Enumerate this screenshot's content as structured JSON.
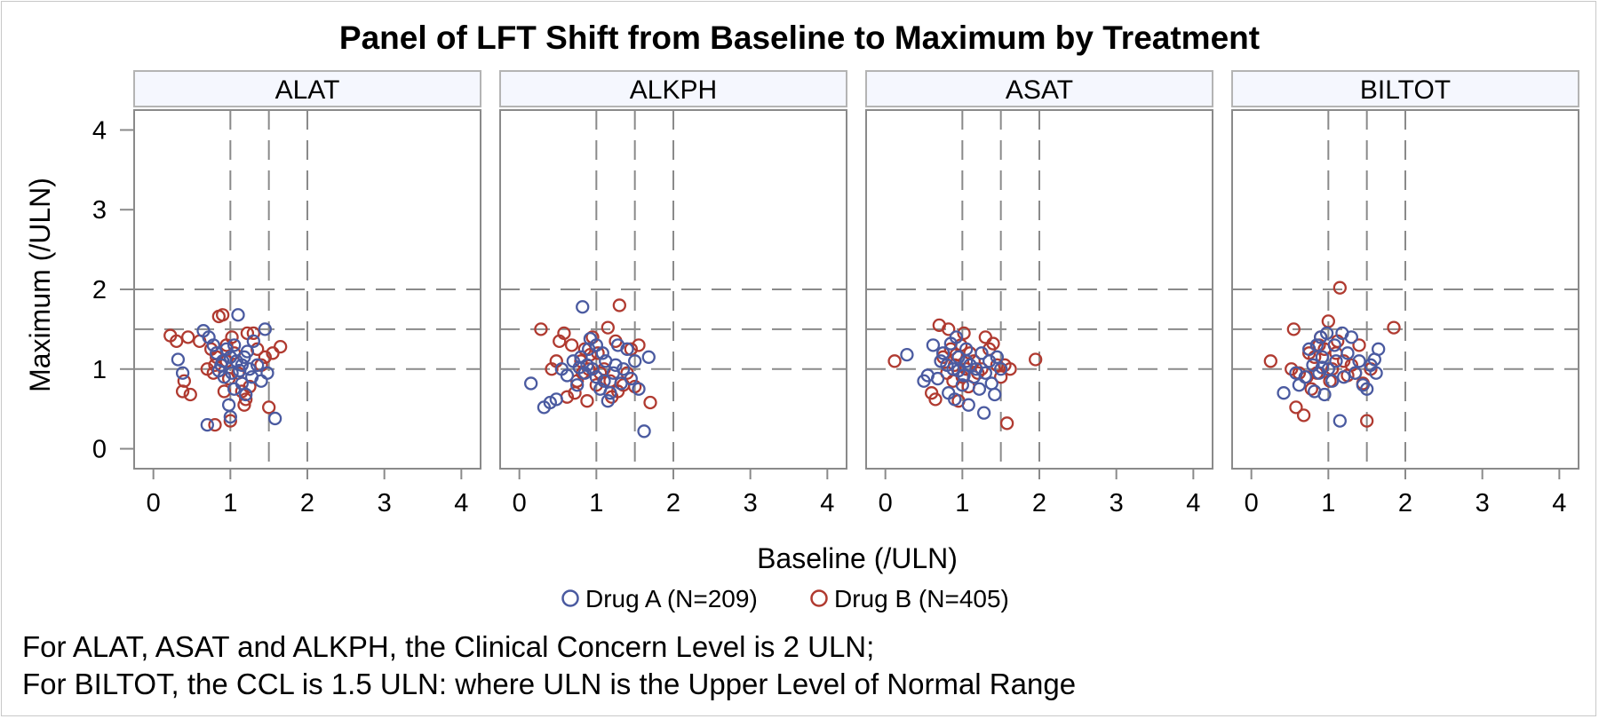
{
  "chart_data": {
    "type": "scatter",
    "title": "Panel of LFT Shift from Baseline to Maximum by Treatment",
    "xlabel": "Baseline (/ULN)",
    "ylabel": "Maximum (/ULN)",
    "xlim": [
      -0.25,
      4.25
    ],
    "ylim": [
      -0.25,
      4.25
    ],
    "xticks": [
      "0",
      "1",
      "2",
      "3",
      "4"
    ],
    "yticks": [
      "0",
      "1",
      "2",
      "3",
      "4"
    ],
    "grid": false,
    "legend_position": "bottom",
    "series_colors": {
      "Drug A": "#4a5aa0",
      "Drug B": "#b03a30"
    },
    "legend": [
      {
        "label": "Drug A (N=209)",
        "color": "#4a5aa0"
      },
      {
        "label": "Drug B (N=405)",
        "color": "#b03a30"
      }
    ],
    "footnotes": [
      "For ALAT, ASAT and ALKPH, the Clinical Concern Level is 2 ULN;",
      "For BILTOT, the CCL is 1.5 ULN: where ULN is the Upper Level of Normal Range"
    ],
    "panels": [
      {
        "name": "ALAT",
        "ref_x": [
          1,
          1.5,
          2
        ],
        "ref_y": [
          1,
          1.5,
          2
        ],
        "drug_a": [
          [
            0.32,
            1.12
          ],
          [
            0.38,
            0.95
          ],
          [
            0.65,
            1.48
          ],
          [
            0.7,
            0.3
          ],
          [
            0.72,
            1.4
          ],
          [
            0.78,
            1.3
          ],
          [
            0.82,
            1.2
          ],
          [
            0.88,
            1.05
          ],
          [
            0.92,
            0.9
          ],
          [
            0.95,
            1.25
          ],
          [
            0.98,
            0.55
          ],
          [
            1.0,
            0.4
          ],
          [
            1.02,
            0.95
          ],
          [
            1.05,
            0.75
          ],
          [
            1.08,
            1.1
          ],
          [
            1.1,
            1.68
          ],
          [
            1.12,
            0.98
          ],
          [
            1.15,
            0.82
          ],
          [
            1.18,
            1.15
          ],
          [
            1.2,
            0.68
          ],
          [
            1.22,
            1.22
          ],
          [
            1.25,
            1.0
          ],
          [
            1.28,
            0.9
          ],
          [
            1.3,
            1.35
          ],
          [
            1.35,
            1.05
          ],
          [
            1.4,
            0.85
          ],
          [
            1.45,
            1.5
          ],
          [
            1.48,
            0.95
          ],
          [
            1.58,
            0.38
          ],
          [
            1.05,
            1.3
          ],
          [
            0.9,
            1.1
          ],
          [
            1.15,
            1.05
          ],
          [
            1.0,
            1.15
          ],
          [
            0.85,
            0.98
          ]
        ],
        "drug_b": [
          [
            0.22,
            1.42
          ],
          [
            0.3,
            1.35
          ],
          [
            0.38,
            0.72
          ],
          [
            0.4,
            0.85
          ],
          [
            0.45,
            1.4
          ],
          [
            0.48,
            0.68
          ],
          [
            0.6,
            1.35
          ],
          [
            0.7,
            1.0
          ],
          [
            0.75,
            1.25
          ],
          [
            0.78,
            0.95
          ],
          [
            0.8,
            0.3
          ],
          [
            0.82,
            1.15
          ],
          [
            0.85,
            1.66
          ],
          [
            0.88,
            1.05
          ],
          [
            0.9,
            1.68
          ],
          [
            0.92,
            0.72
          ],
          [
            0.95,
            1.1
          ],
          [
            0.98,
            0.88
          ],
          [
            1.0,
            0.35
          ],
          [
            1.02,
            1.4
          ],
          [
            1.05,
            1.2
          ],
          [
            1.1,
            0.95
          ],
          [
            1.15,
            0.72
          ],
          [
            1.18,
            0.55
          ],
          [
            1.2,
            0.62
          ],
          [
            1.22,
            1.45
          ],
          [
            1.25,
            0.78
          ],
          [
            1.3,
            1.45
          ],
          [
            1.35,
            1.25
          ],
          [
            1.4,
            1.05
          ],
          [
            1.45,
            1.15
          ],
          [
            1.5,
            0.52
          ],
          [
            1.55,
            1.2
          ],
          [
            1.65,
            1.28
          ],
          [
            0.95,
            1.3
          ],
          [
            0.8,
            1.05
          ]
        ]
      },
      {
        "name": "ALKPH",
        "ref_x": [
          1,
          1.5,
          2
        ],
        "ref_y": [
          1,
          1.5,
          2
        ],
        "drug_a": [
          [
            0.15,
            0.82
          ],
          [
            0.32,
            0.52
          ],
          [
            0.4,
            0.58
          ],
          [
            0.48,
            0.62
          ],
          [
            0.55,
            1.0
          ],
          [
            0.62,
            0.92
          ],
          [
            0.7,
            1.1
          ],
          [
            0.75,
            0.8
          ],
          [
            0.8,
            1.15
          ],
          [
            0.82,
            1.78
          ],
          [
            0.85,
            0.95
          ],
          [
            0.88,
            1.05
          ],
          [
            0.9,
            1.25
          ],
          [
            0.92,
            1.38
          ],
          [
            0.95,
            1.0
          ],
          [
            1.0,
            0.9
          ],
          [
            1.05,
            0.75
          ],
          [
            1.08,
            1.2
          ],
          [
            1.1,
            0.85
          ],
          [
            1.12,
            1.1
          ],
          [
            1.15,
            0.6
          ],
          [
            1.18,
            0.7
          ],
          [
            1.22,
            0.95
          ],
          [
            1.25,
            1.05
          ],
          [
            1.28,
            1.3
          ],
          [
            1.32,
            0.82
          ],
          [
            1.35,
            1.0
          ],
          [
            1.4,
            1.25
          ],
          [
            1.45,
            0.88
          ],
          [
            1.5,
            1.1
          ],
          [
            1.55,
            0.75
          ],
          [
            1.62,
            0.22
          ],
          [
            1.68,
            1.15
          ],
          [
            1.0,
            1.3
          ],
          [
            0.78,
            1.02
          ]
        ],
        "drug_b": [
          [
            0.28,
            1.5
          ],
          [
            0.42,
            1.0
          ],
          [
            0.48,
            1.1
          ],
          [
            0.52,
            1.35
          ],
          [
            0.58,
            1.45
          ],
          [
            0.62,
            0.65
          ],
          [
            0.68,
            1.3
          ],
          [
            0.72,
            0.7
          ],
          [
            0.75,
            0.85
          ],
          [
            0.8,
            1.1
          ],
          [
            0.82,
            0.95
          ],
          [
            0.85,
            1.25
          ],
          [
            0.88,
            0.6
          ],
          [
            0.9,
            1.0
          ],
          [
            0.95,
            1.4
          ],
          [
            1.0,
            0.8
          ],
          [
            1.02,
            1.2
          ],
          [
            1.05,
            0.95
          ],
          [
            1.1,
            1.0
          ],
          [
            1.15,
            1.52
          ],
          [
            1.18,
            0.85
          ],
          [
            1.2,
            0.65
          ],
          [
            1.25,
            1.35
          ],
          [
            1.28,
            0.72
          ],
          [
            1.3,
            1.8
          ],
          [
            1.35,
            0.8
          ],
          [
            1.4,
            0.95
          ],
          [
            1.45,
            1.25
          ],
          [
            1.5,
            0.78
          ],
          [
            1.55,
            1.3
          ],
          [
            1.7,
            0.58
          ],
          [
            0.92,
            1.18
          ]
        ]
      },
      {
        "name": "ASAT",
        "ref_x": [
          1,
          1.5,
          2
        ],
        "ref_y": [
          1,
          1.5,
          2
        ],
        "drug_a": [
          [
            0.28,
            1.18
          ],
          [
            0.5,
            0.85
          ],
          [
            0.55,
            0.92
          ],
          [
            0.62,
            1.3
          ],
          [
            0.68,
            0.88
          ],
          [
            0.72,
            1.1
          ],
          [
            0.75,
            1.2
          ],
          [
            0.8,
            1.05
          ],
          [
            0.82,
            0.7
          ],
          [
            0.85,
            1.32
          ],
          [
            0.88,
            1.0
          ],
          [
            0.9,
            0.62
          ],
          [
            0.92,
            1.4
          ],
          [
            0.95,
            1.15
          ],
          [
            1.0,
            0.8
          ],
          [
            1.02,
            0.92
          ],
          [
            1.05,
            1.25
          ],
          [
            1.08,
            0.55
          ],
          [
            1.1,
            1.05
          ],
          [
            1.15,
            0.9
          ],
          [
            1.18,
            1.0
          ],
          [
            1.22,
            0.75
          ],
          [
            1.25,
            1.2
          ],
          [
            1.28,
            0.45
          ],
          [
            1.3,
            0.95
          ],
          [
            1.35,
            1.1
          ],
          [
            1.38,
            0.82
          ],
          [
            1.42,
            0.68
          ],
          [
            1.45,
            1.15
          ],
          [
            1.5,
            1.0
          ],
          [
            1.05,
            1.1
          ],
          [
            0.95,
            0.98
          ]
        ],
        "drug_b": [
          [
            0.12,
            1.1
          ],
          [
            0.6,
            0.7
          ],
          [
            0.65,
            0.62
          ],
          [
            0.7,
            1.55
          ],
          [
            0.75,
            1.15
          ],
          [
            0.8,
            0.95
          ],
          [
            0.82,
            1.5
          ],
          [
            0.85,
            1.25
          ],
          [
            0.88,
            0.85
          ],
          [
            0.9,
            1.05
          ],
          [
            0.95,
            0.6
          ],
          [
            0.98,
            1.3
          ],
          [
            1.0,
            0.9
          ],
          [
            1.02,
            1.45
          ],
          [
            1.05,
            1.0
          ],
          [
            1.08,
            0.78
          ],
          [
            1.1,
            1.2
          ],
          [
            1.15,
            1.1
          ],
          [
            1.2,
            0.95
          ],
          [
            1.25,
            1.0
          ],
          [
            1.3,
            1.4
          ],
          [
            1.35,
            1.25
          ],
          [
            1.4,
            1.32
          ],
          [
            1.45,
            1.05
          ],
          [
            1.5,
            0.9
          ],
          [
            1.55,
            1.05
          ],
          [
            1.58,
            0.32
          ],
          [
            1.62,
            1.0
          ],
          [
            1.95,
            1.12
          ],
          [
            0.92,
            1.18
          ]
        ]
      },
      {
        "name": "BILTOT",
        "ref_x": [
          1,
          1.5,
          2
        ],
        "ref_y": [
          1,
          1.5,
          2
        ],
        "drug_a": [
          [
            0.42,
            0.7
          ],
          [
            0.58,
            0.95
          ],
          [
            0.62,
            0.8
          ],
          [
            0.7,
            0.9
          ],
          [
            0.75,
            1.25
          ],
          [
            0.8,
            1.05
          ],
          [
            0.82,
            0.72
          ],
          [
            0.85,
            1.3
          ],
          [
            0.88,
            0.95
          ],
          [
            0.9,
            1.4
          ],
          [
            0.92,
            1.15
          ],
          [
            0.95,
            0.68
          ],
          [
            0.98,
            1.45
          ],
          [
            1.0,
            1.0
          ],
          [
            1.05,
            0.85
          ],
          [
            1.08,
            1.3
          ],
          [
            1.1,
            1.1
          ],
          [
            1.15,
            0.35
          ],
          [
            1.18,
            1.45
          ],
          [
            1.2,
            0.9
          ],
          [
            1.25,
            1.2
          ],
          [
            1.3,
            1.4
          ],
          [
            1.35,
            0.95
          ],
          [
            1.4,
            1.1
          ],
          [
            1.45,
            0.8
          ],
          [
            1.5,
            0.75
          ],
          [
            1.55,
            1.05
          ],
          [
            1.6,
            1.12
          ],
          [
            1.65,
            1.25
          ],
          [
            1.62,
            0.95
          ],
          [
            0.92,
            1.02
          ]
        ],
        "drug_b": [
          [
            0.25,
            1.1
          ],
          [
            0.52,
            1.0
          ],
          [
            0.55,
            1.5
          ],
          [
            0.58,
            0.52
          ],
          [
            0.62,
            0.95
          ],
          [
            0.68,
            0.42
          ],
          [
            0.72,
            0.9
          ],
          [
            0.75,
            1.2
          ],
          [
            0.78,
            0.75
          ],
          [
            0.82,
            1.15
          ],
          [
            0.85,
            0.95
          ],
          [
            0.88,
            1.3
          ],
          [
            0.9,
            1.4
          ],
          [
            0.95,
            1.25
          ],
          [
            1.0,
            1.6
          ],
          [
            1.02,
            0.85
          ],
          [
            1.05,
            1.0
          ],
          [
            1.1,
            1.2
          ],
          [
            1.15,
            2.02
          ],
          [
            1.2,
            1.1
          ],
          [
            1.25,
            0.92
          ],
          [
            1.3,
            1.05
          ],
          [
            1.35,
            0.95
          ],
          [
            1.4,
            1.3
          ],
          [
            1.45,
            0.82
          ],
          [
            1.5,
            0.35
          ],
          [
            1.55,
            1.0
          ],
          [
            1.85,
            1.52
          ],
          [
            1.12,
            1.35
          ]
        ]
      }
    ]
  }
}
